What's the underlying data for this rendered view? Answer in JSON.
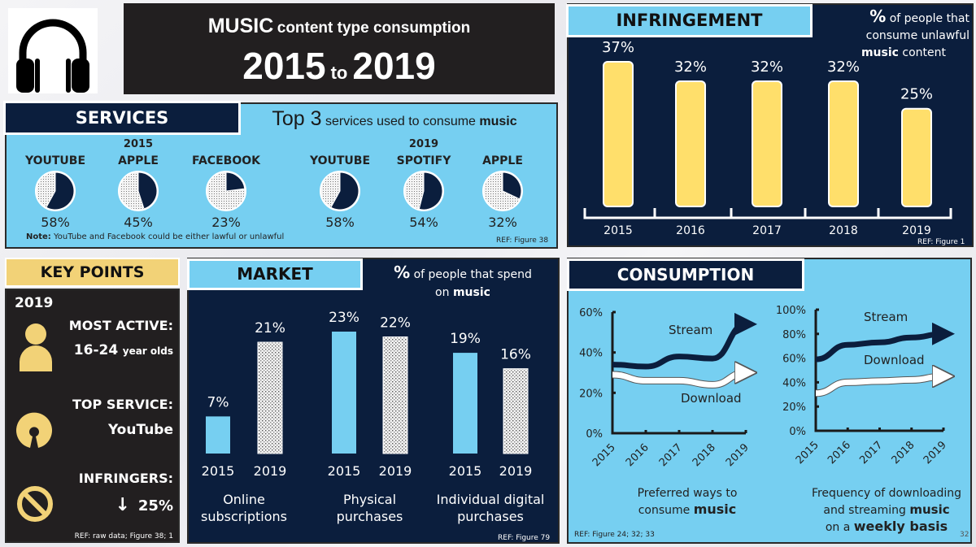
{
  "header": {
    "icon": "headphones-icon",
    "title_big": "MUSIC",
    "title_small": "content type consumption",
    "year_from": "2015",
    "to_word": "to",
    "year_to": "2019"
  },
  "services": {
    "tab_label": "SERVICES",
    "subtitle_big": "Top 3",
    "subtitle_small": "services used to consume",
    "subtitle_bold": "music",
    "note_label": "Note:",
    "note_text": "YouTube and Facebook could be either lawful or unlawful",
    "ref": "REF: Figure 38",
    "groups": [
      {
        "year": "2015",
        "items": [
          {
            "name": "YOUTUBE",
            "value": 58,
            "label": "58%"
          },
          {
            "name": "APPLE",
            "value": 45,
            "label": "45%"
          },
          {
            "name": "FACEBOOK",
            "value": 23,
            "label": "23%"
          }
        ]
      },
      {
        "year": "2019",
        "items": [
          {
            "name": "YOUTUBE",
            "value": 58,
            "label": "58%"
          },
          {
            "name": "SPOTIFY",
            "value": 54,
            "label": "54%"
          },
          {
            "name": "APPLE",
            "value": 32,
            "label": "32%"
          }
        ]
      }
    ]
  },
  "infringement": {
    "tab_label": "INFRINGEMENT",
    "sub_pct": "%",
    "sub_line1": "of people that",
    "sub_line2": "consume unlawful",
    "sub_bold": "music",
    "sub_line3": "content",
    "ref": "REF: Figure 1"
  },
  "keypoints": {
    "tab_label": "KEY POINTS",
    "year": "2019",
    "most_active_label": "MOST ACTIVE:",
    "most_active_big": "16-24",
    "most_active_small": "year olds",
    "top_service_label": "TOP SERVICE:",
    "top_service_value": "YouTube",
    "infringers_label": "INFRINGERS:",
    "infringers_arrow": "↓",
    "infringers_value": "25%",
    "ref": "REF: raw data; Figure 38; 1",
    "icons": [
      "person-icon",
      "open-source-icon",
      "prohibited-icon"
    ]
  },
  "market": {
    "tab_label": "MARKET",
    "sub_pct": "%",
    "sub_line1": "of people that spend",
    "sub_on": "on",
    "sub_bold": "music",
    "ref": "REF: Figure 79"
  },
  "consumption": {
    "tab_label": "CONSUMPTION",
    "left_caption_1": "Preferred ways to",
    "left_caption_2": "consume",
    "left_caption_bold": "music",
    "right_caption_1": "Frequency of downloading",
    "right_caption_2": "and streaming",
    "right_caption_bold1": "music",
    "right_caption_3": "on a",
    "right_caption_bold2": "weekly basis",
    "ref": "REF: Figure 24; 32; 33",
    "page_number": "32"
  },
  "colors": {
    "navy": "#0b1e3d",
    "sky": "#76cff1",
    "gold": "#f2d277",
    "yellow_bar": "#ffdf6b",
    "dark": "#221f20"
  },
  "chart_data": [
    {
      "type": "pie",
      "title": "Top 3 services used to consume music - 2015",
      "categories": [
        "YOUTUBE",
        "APPLE",
        "FACEBOOK"
      ],
      "values": [
        58,
        45,
        23
      ],
      "unit": "%"
    },
    {
      "type": "pie",
      "title": "Top 3 services used to consume music - 2019",
      "categories": [
        "YOUTUBE",
        "SPOTIFY",
        "APPLE"
      ],
      "values": [
        58,
        54,
        32
      ],
      "unit": "%"
    },
    {
      "type": "bar",
      "title": "% of people that consume unlawful music content",
      "categories": [
        "2015",
        "2016",
        "2017",
        "2018",
        "2019"
      ],
      "values": [
        37,
        32,
        32,
        32,
        25
      ],
      "data_labels": [
        "37%",
        "32%",
        "32%",
        "32%",
        "25%"
      ],
      "xlabel": "",
      "ylabel": "",
      "ylim": [
        0,
        40
      ]
    },
    {
      "type": "bar",
      "title": "% of people that spend on music",
      "categories": [
        "Online subscriptions",
        "Physical purchases",
        "Individual digital purchases"
      ],
      "series": [
        {
          "name": "2015",
          "values": [
            7,
            23,
            19
          ],
          "labels": [
            "7%",
            "23%",
            "19%"
          ]
        },
        {
          "name": "2019",
          "values": [
            21,
            22,
            16
          ],
          "labels": [
            "21%",
            "22%",
            "16%"
          ]
        }
      ],
      "category_lines": [
        [
          "Online",
          "subscriptions"
        ],
        [
          "Physical",
          "purchases"
        ],
        [
          "Individual digital",
          "purchases"
        ]
      ],
      "ylim": [
        0,
        25
      ]
    },
    {
      "type": "line",
      "title": "Preferred ways to consume music",
      "x": [
        "2015",
        "2016",
        "2017",
        "2018",
        "2019"
      ],
      "series": [
        {
          "name": "Stream",
          "values": [
            34,
            33,
            38,
            37,
            54
          ]
        },
        {
          "name": "Download",
          "values": [
            29,
            26,
            26,
            24,
            30
          ]
        }
      ],
      "yticks": [
        "0%",
        "20%",
        "40%",
        "60%"
      ],
      "ylim": [
        0,
        60
      ]
    },
    {
      "type": "line",
      "title": "Frequency of downloading and streaming music on a weekly basis",
      "x": [
        "2015",
        "2016",
        "2017",
        "2018",
        "2019"
      ],
      "series": [
        {
          "name": "Stream",
          "values": [
            59,
            71,
            73,
            77,
            80
          ]
        },
        {
          "name": "Download",
          "values": [
            31,
            40,
            41,
            42,
            45
          ]
        }
      ],
      "yticks": [
        "0%",
        "20%",
        "40%",
        "60%",
        "80%",
        "100%"
      ],
      "ylim": [
        0,
        100
      ]
    }
  ]
}
